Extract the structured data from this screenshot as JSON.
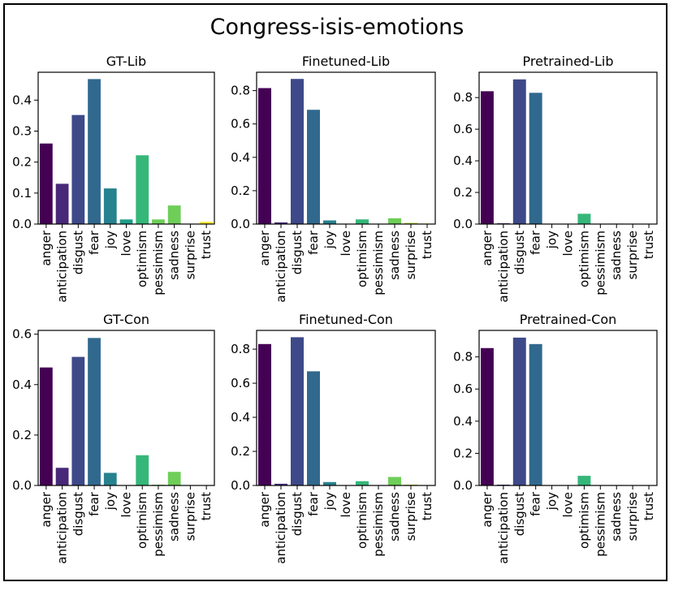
{
  "title": "Congress-isis-emotions",
  "colors": {
    "anger": "#440154",
    "anticipation": "#482878",
    "disgust": "#3e4989",
    "fear": "#31688e",
    "joy": "#26828e",
    "love": "#1f9e89",
    "optimism": "#35b779",
    "pessimism": "#6ece58",
    "sadness": "#6ece58",
    "surprise": "#b5de2b",
    "trust": "#fde725"
  },
  "chart_data": [
    {
      "type": "bar",
      "title": "GT-Lib",
      "categories": [
        "anger",
        "anticipation",
        "disgust",
        "fear",
        "joy",
        "love",
        "optimism",
        "pessimism",
        "sadness",
        "surprise",
        "trust"
      ],
      "values": [
        0.26,
        0.13,
        0.352,
        0.468,
        0.115,
        0.015,
        0.222,
        0.015,
        0.06,
        0.0,
        0.007
      ],
      "ylim": [
        0,
        0.49
      ],
      "yticks": [
        0.0,
        0.1,
        0.2,
        0.3,
        0.4
      ],
      "ytick_labels": [
        "0.0",
        "0.1",
        "0.2",
        "0.3",
        "0.4"
      ]
    },
    {
      "type": "bar",
      "title": "Finetuned-Lib",
      "categories": [
        "anger",
        "anticipation",
        "disgust",
        "fear",
        "joy",
        "love",
        "optimism",
        "pessimism",
        "sadness",
        "surprise",
        "trust"
      ],
      "values": [
        0.815,
        0.01,
        0.87,
        0.685,
        0.022,
        0.0,
        0.028,
        0.0,
        0.035,
        0.007,
        0.003
      ],
      "ylim": [
        0,
        0.91
      ],
      "yticks": [
        0.0,
        0.2,
        0.4,
        0.6,
        0.8
      ],
      "ytick_labels": [
        "0.0",
        "0.2",
        "0.4",
        "0.6",
        "0.8"
      ]
    },
    {
      "type": "bar",
      "title": "Pretrained-Lib",
      "categories": [
        "anger",
        "anticipation",
        "disgust",
        "fear",
        "joy",
        "love",
        "optimism",
        "pessimism",
        "sadness",
        "surprise",
        "trust"
      ],
      "values": [
        0.84,
        0.005,
        0.915,
        0.83,
        0.0,
        0.0,
        0.065,
        0.0,
        0.003,
        0.0,
        0.0
      ],
      "ylim": [
        0,
        0.96
      ],
      "yticks": [
        0.0,
        0.2,
        0.4,
        0.6,
        0.8
      ],
      "ytick_labels": [
        "0.0",
        "0.2",
        "0.4",
        "0.6",
        "0.8"
      ]
    },
    {
      "type": "bar",
      "title": "GT-Con",
      "categories": [
        "anger",
        "anticipation",
        "disgust",
        "fear",
        "joy",
        "love",
        "optimism",
        "pessimism",
        "sadness",
        "surprise",
        "trust"
      ],
      "values": [
        0.468,
        0.07,
        0.51,
        0.585,
        0.05,
        0.0,
        0.12,
        0.003,
        0.054,
        0.0,
        0.0
      ],
      "ylim": [
        0,
        0.615
      ],
      "yticks": [
        0.0,
        0.2,
        0.4,
        0.6
      ],
      "ytick_labels": [
        "0.0",
        "0.2",
        "0.4",
        "0.6"
      ]
    },
    {
      "type": "bar",
      "title": "Finetuned-Con",
      "categories": [
        "anger",
        "anticipation",
        "disgust",
        "fear",
        "joy",
        "love",
        "optimism",
        "pessimism",
        "sadness",
        "surprise",
        "trust"
      ],
      "values": [
        0.83,
        0.01,
        0.87,
        0.67,
        0.02,
        0.0,
        0.025,
        0.0,
        0.05,
        0.005,
        0.002
      ],
      "ylim": [
        0,
        0.91
      ],
      "yticks": [
        0.0,
        0.2,
        0.4,
        0.6,
        0.8
      ],
      "ytick_labels": [
        "0.0",
        "0.2",
        "0.4",
        "0.6",
        "0.8"
      ]
    },
    {
      "type": "bar",
      "title": "Pretrained-Con",
      "categories": [
        "anger",
        "anticipation",
        "disgust",
        "fear",
        "joy",
        "love",
        "optimism",
        "pessimism",
        "sadness",
        "surprise",
        "trust"
      ],
      "values": [
        0.855,
        0.005,
        0.92,
        0.88,
        0.0,
        0.0,
        0.06,
        0.0,
        0.003,
        0.0,
        0.0
      ],
      "ylim": [
        0,
        0.965
      ],
      "yticks": [
        0.0,
        0.2,
        0.4,
        0.6,
        0.8
      ],
      "ytick_labels": [
        "0.0",
        "0.2",
        "0.4",
        "0.6",
        "0.8"
      ]
    }
  ]
}
